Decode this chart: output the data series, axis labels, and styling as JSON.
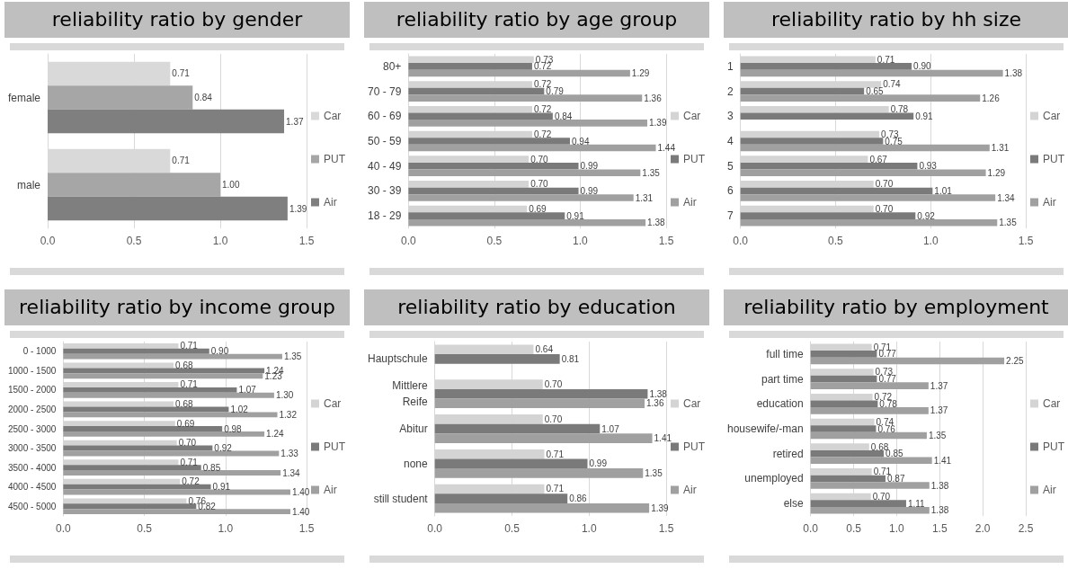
{
  "chart_data": [
    {
      "type": "bar",
      "orientation": "horizontal",
      "title": "reliability ratio by gender",
      "categories": [
        "female",
        "male"
      ],
      "series": [
        {
          "name": "Car",
          "color": "#d9d9d9",
          "values": [
            0.71,
            0.71
          ],
          "value_labels": [
            "0.71",
            "0.71"
          ]
        },
        {
          "name": "PUT",
          "color": "#a6a6a6",
          "values": [
            0.84,
            1.0
          ],
          "value_labels": [
            "0.84",
            "1.00"
          ]
        },
        {
          "name": "Air",
          "color": "#7f7f7f",
          "values": [
            1.37,
            1.39
          ],
          "value_labels": [
            "1.37",
            "1.39"
          ]
        }
      ],
      "xlim": [
        0,
        1.5
      ],
      "xticks": [
        {
          "value": 0,
          "label": "0.0"
        },
        0.5,
        {
          "value": 1,
          "label": "1.0"
        },
        1.5
      ],
      "grid": "x",
      "legend": "right"
    },
    {
      "type": "bar",
      "orientation": "horizontal",
      "title": "reliability ratio by age group",
      "categories": [
        "80+",
        "70 - 79",
        "60 - 69",
        "50 - 59",
        "40 - 49",
        "30 - 39",
        "18 - 29"
      ],
      "series": [
        {
          "name": "Car",
          "color": "#d4d4d4",
          "values": [
            0.73,
            0.72,
            0.72,
            0.72,
            0.7,
            0.7,
            0.69
          ],
          "value_labels": [
            "0.73",
            "0.72",
            "0.72",
            "0.72",
            "0.70",
            "0.70",
            "0.69"
          ]
        },
        {
          "name": "PUT",
          "color": "#7a7a7a",
          "values": [
            0.72,
            0.79,
            0.84,
            0.94,
            0.99,
            0.99,
            0.91
          ],
          "value_labels": [
            "0.72",
            "0.79",
            "0.84",
            "0.94",
            "0.99",
            "0.99",
            "0.91"
          ]
        },
        {
          "name": "Air",
          "color": "#a0a0a0",
          "values": [
            1.29,
            1.36,
            1.39,
            1.44,
            1.35,
            1.31,
            1.38
          ],
          "value_labels": [
            "1.29",
            "1.36",
            "1.39",
            "1.44",
            "1.35",
            "1.31",
            "1.38"
          ]
        }
      ],
      "xlim": [
        0,
        1.5
      ],
      "xticks": [
        {
          "value": 0,
          "label": "0.0"
        },
        0.5,
        {
          "value": 1,
          "label": "1.0"
        },
        1.5
      ],
      "grid": "x",
      "legend": "right"
    },
    {
      "type": "bar",
      "orientation": "horizontal",
      "title": "reliability ratio by hh size",
      "categories": [
        "1",
        "2",
        "3",
        "4",
        "5",
        "6",
        "7"
      ],
      "series": [
        {
          "name": "Car",
          "color": "#d4d4d4",
          "values": [
            0.71,
            0.74,
            0.78,
            0.73,
            0.67,
            0.7,
            0.7
          ],
          "value_labels": [
            "0.71",
            "0.74",
            "0.78",
            "0.73",
            "0.67",
            "0.70",
            "0.70"
          ]
        },
        {
          "name": "PUT",
          "color": "#7a7a7a",
          "values": [
            0.9,
            0.65,
            0.91,
            0.75,
            0.93,
            1.01,
            0.92
          ],
          "value_labels": [
            "0.90",
            "0.65",
            "0.91",
            "0.75",
            "0.93",
            "1.01",
            "0.92"
          ]
        },
        {
          "name": "Air",
          "color": "#a0a0a0",
          "values": [
            1.38,
            1.26,
            null,
            1.31,
            1.29,
            1.34,
            1.35
          ],
          "value_labels": [
            "1.38",
            "1.26",
            null,
            "1.31",
            "1.29",
            "1.34",
            "1.35"
          ]
        }
      ],
      "xlim": [
        0,
        1.5
      ],
      "xticks": [
        {
          "value": 0,
          "label": "0.0"
        },
        0.5,
        {
          "value": 1,
          "label": "1.0"
        },
        1.5
      ],
      "grid": "x",
      "legend": "right"
    },
    {
      "type": "bar",
      "orientation": "horizontal",
      "title": "reliability ratio by income group",
      "categories": [
        "0 - 1000",
        "1000 - 1500",
        "1500 - 2000",
        "2000 - 2500",
        "2500 - 3000",
        "3000 - 3500",
        "3500 - 4000",
        "4000 - 4500",
        "4500 - 5000"
      ],
      "series": [
        {
          "name": "Car",
          "color": "#d4d4d4",
          "values": [
            0.71,
            0.68,
            0.71,
            0.68,
            0.69,
            0.7,
            0.71,
            0.72,
            0.76
          ],
          "value_labels": [
            "0.71",
            "0.68",
            "0.71",
            "0.68",
            "0.69",
            "0.70",
            "0.71",
            "0.72",
            "0.76"
          ]
        },
        {
          "name": "PUT",
          "color": "#7a7a7a",
          "values": [
            0.9,
            1.24,
            1.07,
            1.02,
            0.98,
            0.92,
            0.85,
            0.91,
            0.82
          ],
          "value_labels": [
            "0.90",
            "1.24",
            "1.07",
            "1.02",
            "0.98",
            "0.92",
            "0.85",
            "0.91",
            "0.82"
          ]
        },
        {
          "name": "Air",
          "color": "#a0a0a0",
          "values": [
            1.35,
            1.23,
            1.3,
            1.32,
            1.24,
            1.33,
            1.34,
            1.4,
            1.4
          ],
          "value_labels": [
            "1.35",
            "1.23",
            "1.30",
            "1.32",
            "1.24",
            "1.33",
            "1.34",
            "1.40",
            "1.40"
          ]
        }
      ],
      "xlim": [
        0,
        1.5
      ],
      "xticks": [
        {
          "value": 0,
          "label": "0.0"
        },
        0.5,
        {
          "value": 1,
          "label": "1.0"
        },
        1.5
      ],
      "grid": "x",
      "legend": "right"
    },
    {
      "type": "bar",
      "orientation": "horizontal",
      "title": "reliability ratio by education",
      "categories": [
        "Hauptschule",
        "Mittlere\nReife",
        "Abitur",
        "none",
        "still student"
      ],
      "series": [
        {
          "name": "Car",
          "color": "#d4d4d4",
          "values": [
            0.64,
            0.7,
            0.7,
            0.71,
            0.71
          ],
          "value_labels": [
            "0.64",
            "0.70",
            "0.70",
            "0.71",
            "0.71"
          ]
        },
        {
          "name": "PUT",
          "color": "#7a7a7a",
          "values": [
            0.81,
            1.38,
            1.07,
            0.99,
            0.86
          ],
          "value_labels": [
            "0.81",
            "1.38",
            "1.07",
            "0.99",
            "0.86"
          ]
        },
        {
          "name": "Air",
          "color": "#a0a0a0",
          "values": [
            null,
            1.36,
            1.41,
            1.35,
            1.39
          ],
          "value_labels": [
            null,
            "1.36",
            "1.41",
            "1.35",
            "1.39"
          ]
        }
      ],
      "xlim": [
        0,
        1.5
      ],
      "xticks": [
        {
          "value": 0,
          "label": "0.0"
        },
        0.5,
        {
          "value": 1,
          "label": "1.0"
        },
        1.5
      ],
      "grid": "x",
      "legend": "right"
    },
    {
      "type": "bar",
      "orientation": "horizontal",
      "title": "reliability ratio by employment",
      "categories": [
        "full time",
        "part time",
        "education",
        "housewife/-man",
        "retired",
        "unemployed",
        "else"
      ],
      "series": [
        {
          "name": "Car",
          "color": "#d4d4d4",
          "values": [
            0.71,
            0.73,
            0.72,
            0.74,
            0.68,
            0.71,
            0.7
          ],
          "value_labels": [
            "0.71",
            "0.73",
            "0.72",
            "0.74",
            "0.68",
            "0.71",
            "0.70"
          ]
        },
        {
          "name": "PUT",
          "color": "#7a7a7a",
          "values": [
            0.77,
            0.77,
            0.78,
            0.76,
            0.85,
            0.87,
            1.11
          ],
          "value_labels": [
            "0.77",
            "0.77",
            "0.78",
            "0.76",
            "0.85",
            "0.87",
            "1.11"
          ]
        },
        {
          "name": "Air",
          "color": "#a0a0a0",
          "values": [
            2.25,
            1.37,
            1.37,
            1.35,
            1.41,
            1.38,
            1.38
          ],
          "value_labels": [
            "2.25",
            "1.37",
            "1.37",
            "1.35",
            "1.41",
            "1.38",
            "1.38"
          ]
        }
      ],
      "xlim": [
        0,
        2.5
      ],
      "xticks": [
        {
          "value": 0,
          "label": "0.0"
        },
        0.5,
        {
          "value": 1,
          "label": "1.0"
        },
        1.5,
        {
          "value": 2,
          "label": "2.0"
        },
        2.5
      ],
      "grid": "x",
      "legend": "right"
    }
  ]
}
